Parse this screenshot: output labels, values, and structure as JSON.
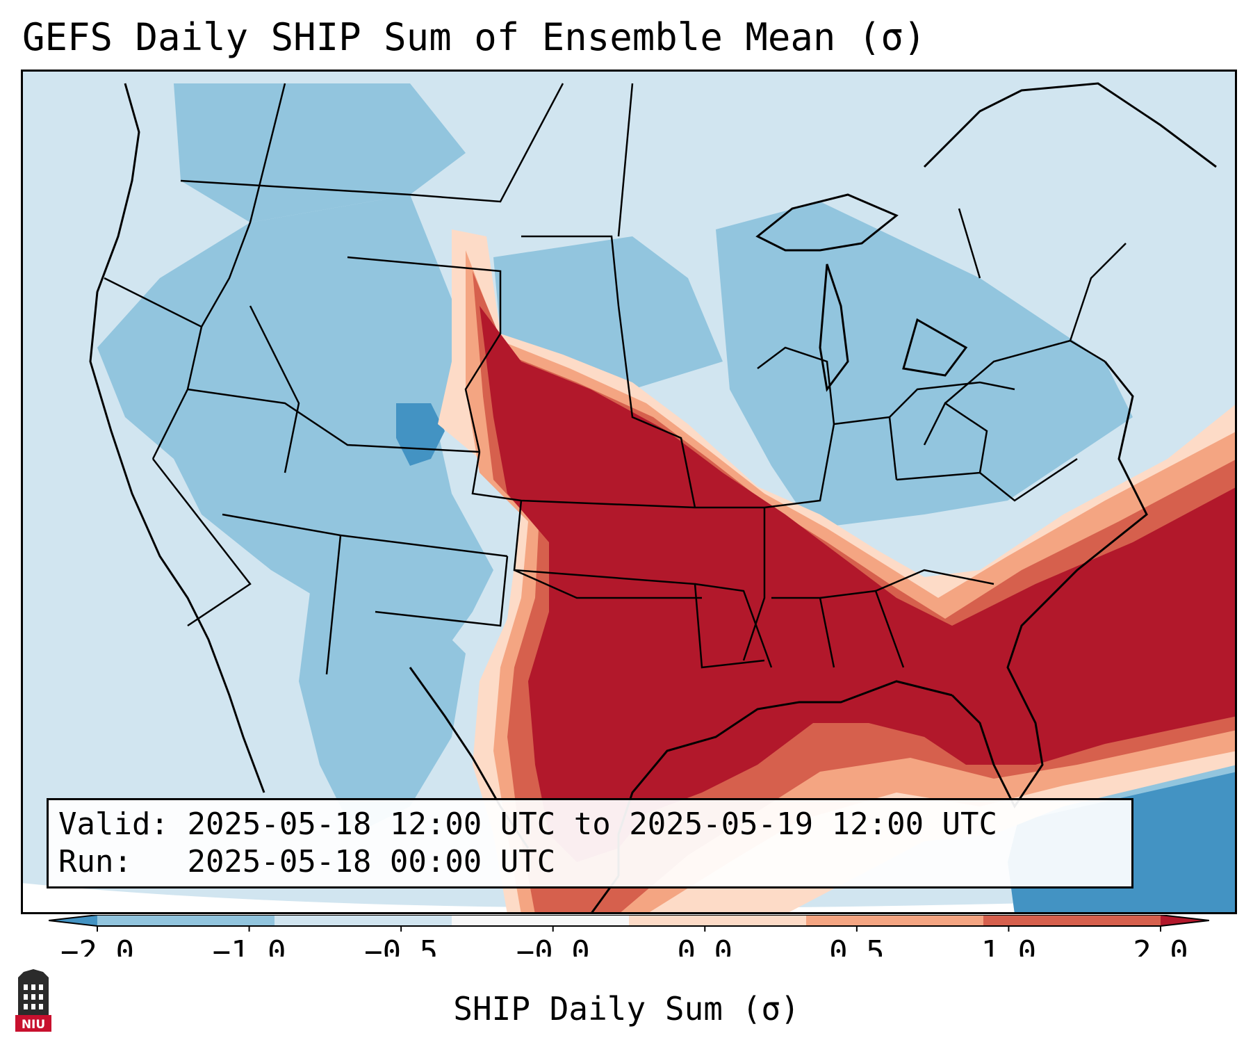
{
  "title": "GEFS Daily SHIP Sum of Ensemble Mean (σ)",
  "info_box": {
    "valid_label": "Valid:",
    "valid_value": "2025-05-18 12:00 UTC to 2025-05-19 12:00 UTC",
    "run_label": "Run:",
    "run_value": "2025-05-18 00:00 UTC"
  },
  "colorbar": {
    "label": "SHIP Daily Sum (σ)",
    "ticks": [
      "−2.0",
      "−1.0",
      "−0.5",
      "−0.0",
      "0.0",
      "0.5",
      "1.0",
      "2.0"
    ],
    "colors": [
      "#4393c3",
      "#92c5de",
      "#d1e5f0",
      "#f7f7f7",
      "#fddbc7",
      "#f4a582",
      "#d6604d",
      "#b2182b"
    ]
  },
  "logo": {
    "text": "NIU"
  }
}
